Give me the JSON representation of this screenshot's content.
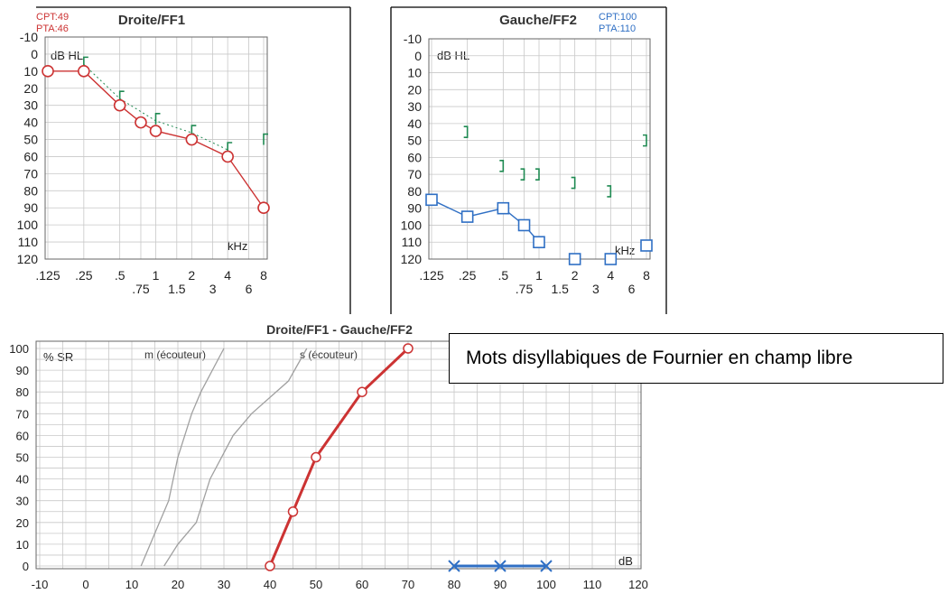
{
  "colors": {
    "right": "#cc3333",
    "left": "#2f6fc4",
    "bone": "#1f8a52",
    "ref": "#a0a0a0",
    "grid": "#c8c8c8"
  },
  "chart_data": [
    {
      "type": "line",
      "title": "Droite/FF1",
      "stats": [
        "CPT:49",
        "PTA:46"
      ],
      "ylabel": "dB HL",
      "xlabel": "kHz",
      "ylim": [
        -10,
        120
      ],
      "y_ticks": [
        "-10",
        "0",
        "10",
        "20",
        "30",
        "40",
        "50",
        "60",
        "70",
        "80",
        "90",
        "100",
        "110",
        "120"
      ],
      "x_ticks_top": [
        ".125",
        ".25",
        ".5",
        "1",
        "2",
        "4",
        "8"
      ],
      "x_ticks_bottom": [
        ".75",
        "1.5",
        "3",
        "6"
      ],
      "air": [
        [
          0.125,
          10
        ],
        [
          0.25,
          10
        ],
        [
          0.5,
          30
        ],
        [
          0.75,
          40
        ],
        [
          1,
          45
        ],
        [
          2,
          50
        ],
        [
          4,
          60
        ],
        [
          8,
          90
        ]
      ],
      "bone": [
        [
          0.25,
          5
        ],
        [
          0.5,
          25
        ],
        [
          1,
          38
        ],
        [
          2,
          45
        ],
        [
          4,
          55
        ],
        [
          8,
          50
        ]
      ]
    },
    {
      "type": "line",
      "title": "Gauche/FF2",
      "stats": [
        "CPT:100",
        "PTA:110"
      ],
      "ylabel": "dB HL",
      "xlabel": "kHz",
      "ylim": [
        -10,
        120
      ],
      "y_ticks": [
        "-10",
        "0",
        "10",
        "20",
        "30",
        "40",
        "50",
        "60",
        "70",
        "80",
        "90",
        "100",
        "110",
        "120"
      ],
      "x_ticks_top": [
        ".125",
        ".25",
        ".5",
        "1",
        "2",
        "4",
        "8"
      ],
      "x_ticks_bottom": [
        ".75",
        "1.5",
        "3",
        "6"
      ],
      "air": [
        [
          0.125,
          85
        ],
        [
          0.25,
          95
        ],
        [
          0.5,
          90
        ],
        [
          0.75,
          100
        ],
        [
          1,
          110
        ],
        [
          2,
          120
        ],
        [
          4,
          120
        ],
        [
          8,
          112
        ]
      ],
      "bone": [
        [
          0.25,
          45
        ],
        [
          0.5,
          65
        ],
        [
          0.75,
          70
        ],
        [
          1,
          70
        ],
        [
          2,
          75
        ],
        [
          4,
          80
        ],
        [
          8,
          50
        ]
      ]
    },
    {
      "type": "line",
      "title": "Droite/FF1 - Gauche/FF2",
      "ylabel": "% SR",
      "xlabel": "dB",
      "xlim": [
        -10,
        120
      ],
      "ylim": [
        0,
        100
      ],
      "x_ticks": [
        "-10",
        "0",
        "10",
        "20",
        "30",
        "40",
        "50",
        "60",
        "70",
        "80",
        "90",
        "100",
        "110",
        "120"
      ],
      "y_ticks": [
        "0",
        "10",
        "20",
        "30",
        "40",
        "50",
        "60",
        "70",
        "80",
        "90",
        "100"
      ],
      "ref_labels": [
        "m (écouteur)",
        "s (écouteur)"
      ],
      "series": [
        {
          "points": [
            [
              40,
              0
            ],
            [
              45,
              25
            ],
            [
              50,
              50
            ],
            [
              60,
              80
            ],
            [
              70,
              100
            ]
          ]
        },
        {
          "points": [
            [
              80,
              0
            ],
            [
              90,
              0
            ],
            [
              100,
              0
            ]
          ]
        }
      ],
      "ref_m": [
        [
          12,
          0
        ],
        [
          14,
          10
        ],
        [
          16,
          20
        ],
        [
          18,
          30
        ],
        [
          20,
          50
        ],
        [
          23,
          70
        ],
        [
          25,
          80
        ],
        [
          30,
          100
        ]
      ],
      "ref_s": [
        [
          17,
          0
        ],
        [
          20,
          10
        ],
        [
          24,
          20
        ],
        [
          27,
          40
        ],
        [
          32,
          60
        ],
        [
          36,
          70
        ],
        [
          44,
          85
        ],
        [
          48,
          100
        ]
      ]
    }
  ],
  "callout": {
    "text": "Mots disyllabiques de Fournier en champ libre"
  }
}
